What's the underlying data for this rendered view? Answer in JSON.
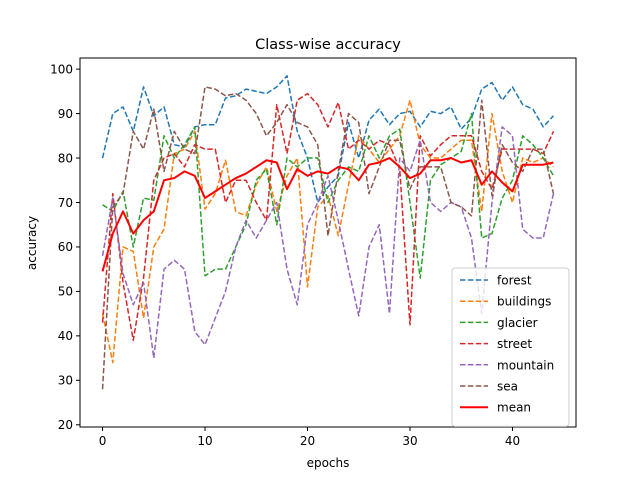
{
  "chart_data": {
    "type": "line",
    "title": "Class-wise accuracy",
    "xlabel": "epochs",
    "ylabel": "accuracy",
    "xlim": [
      -2.2,
      46.2
    ],
    "ylim": [
      19.5,
      102.5
    ],
    "xticks": [
      0,
      10,
      20,
      30,
      40
    ],
    "yticks": [
      20,
      30,
      40,
      50,
      60,
      70,
      80,
      90,
      100
    ],
    "grid": false,
    "legend_position": "lower right",
    "x": [
      0,
      1,
      2,
      3,
      4,
      5,
      6,
      7,
      8,
      9,
      10,
      11,
      12,
      13,
      14,
      15,
      16,
      17,
      18,
      19,
      20,
      21,
      22,
      23,
      24,
      25,
      26,
      27,
      28,
      29,
      30,
      31,
      32,
      33,
      34,
      35,
      36,
      37,
      38,
      39,
      40,
      41,
      42,
      43,
      44
    ],
    "series": [
      {
        "name": "forest",
        "color": "#1f77b4",
        "style": "dashed",
        "values": [
          80,
          90,
          91.5,
          86,
          96,
          89.5,
          91.5,
          83,
          82.5,
          87,
          87.5,
          87.5,
          93.5,
          94,
          95.5,
          95,
          94.5,
          96,
          98.5,
          86,
          80,
          70,
          73.5,
          76,
          88,
          80,
          88.5,
          91,
          87.5,
          90,
          90.5,
          87,
          90.5,
          90,
          91.5,
          86.5,
          89,
          95.5,
          97,
          93,
          96,
          92,
          91,
          87,
          89.5
        ]
      },
      {
        "name": "buildings",
        "color": "#ff7f0e",
        "style": "dashed",
        "values": [
          45,
          34,
          60,
          59,
          44,
          60,
          64,
          81,
          82,
          86,
          68.5,
          72,
          79.5,
          68,
          67,
          74,
          78,
          68,
          76,
          80,
          51,
          69,
          71.5,
          62.5,
          74,
          85,
          82,
          79,
          82,
          85,
          93,
          83,
          80,
          80,
          82,
          84,
          84,
          68,
          90,
          77,
          70,
          80,
          79,
          80,
          78
        ]
      },
      {
        "name": "glacier",
        "color": "#2ca02c",
        "style": "dashed",
        "values": [
          69.5,
          68,
          72.5,
          60,
          71,
          70.5,
          85,
          80,
          83,
          87,
          53.5,
          55,
          55,
          60,
          65,
          75,
          77.5,
          65,
          80,
          78,
          80,
          80,
          70,
          75,
          78,
          77,
          85,
          80,
          85,
          86.5,
          70,
          53,
          75,
          78.5,
          80,
          81.5,
          90,
          62,
          63,
          71,
          75,
          85,
          83,
          80,
          76
        ]
      },
      {
        "name": "street",
        "color": "#d62728",
        "style": "dashed",
        "values": [
          43,
          72,
          52,
          39,
          53,
          75,
          80,
          81,
          78,
          83,
          82,
          82,
          70,
          75,
          75,
          70,
          66,
          92,
          81,
          93,
          94.5,
          92,
          87,
          92.5,
          82,
          84,
          82,
          84,
          83,
          77.5,
          42.5,
          85,
          80.5,
          83,
          85,
          85,
          85,
          77,
          73,
          82,
          82,
          82,
          82,
          81,
          86
        ]
      },
      {
        "name": "mountain",
        "color": "#9467bd",
        "style": "dashed",
        "values": [
          58,
          71,
          54,
          47,
          52,
          35,
          55,
          57,
          55,
          41,
          38,
          44,
          50,
          60,
          66,
          62,
          66,
          70,
          55,
          47,
          65,
          70,
          76,
          66,
          55,
          44.5,
          60,
          65,
          45,
          80,
          77,
          84,
          70,
          68,
          70,
          69,
          62,
          45,
          70,
          87,
          85,
          64,
          62,
          62,
          72
        ]
      },
      {
        "name": "sea",
        "color": "#8c564b",
        "style": "dashed",
        "values": [
          28,
          69,
          72,
          86,
          82,
          91,
          77,
          86,
          82,
          81,
          96,
          95.5,
          94,
          94.5,
          93,
          90,
          85,
          88,
          92,
          88,
          87,
          83,
          62.5,
          77,
          90,
          88,
          72,
          78,
          84,
          84,
          73,
          78,
          78,
          78,
          70,
          69,
          67,
          93,
          71.5,
          83,
          79,
          77,
          82,
          82,
          72
        ]
      },
      {
        "name": "mean",
        "color": "#ff0000",
        "style": "solid",
        "values": [
          54.5,
          63,
          68,
          63,
          66,
          68,
          75,
          75.5,
          77,
          76,
          71,
          72.5,
          74,
          75.5,
          76.5,
          78,
          79.5,
          79,
          73,
          77.5,
          76,
          77,
          76.5,
          78,
          77.5,
          75,
          78.5,
          79,
          80,
          78,
          75.5,
          76.5,
          79.5,
          79.5,
          80,
          79,
          79.5,
          74,
          77,
          74.5,
          72.5,
          78.5,
          78.5,
          78.5,
          79
        ]
      }
    ]
  }
}
